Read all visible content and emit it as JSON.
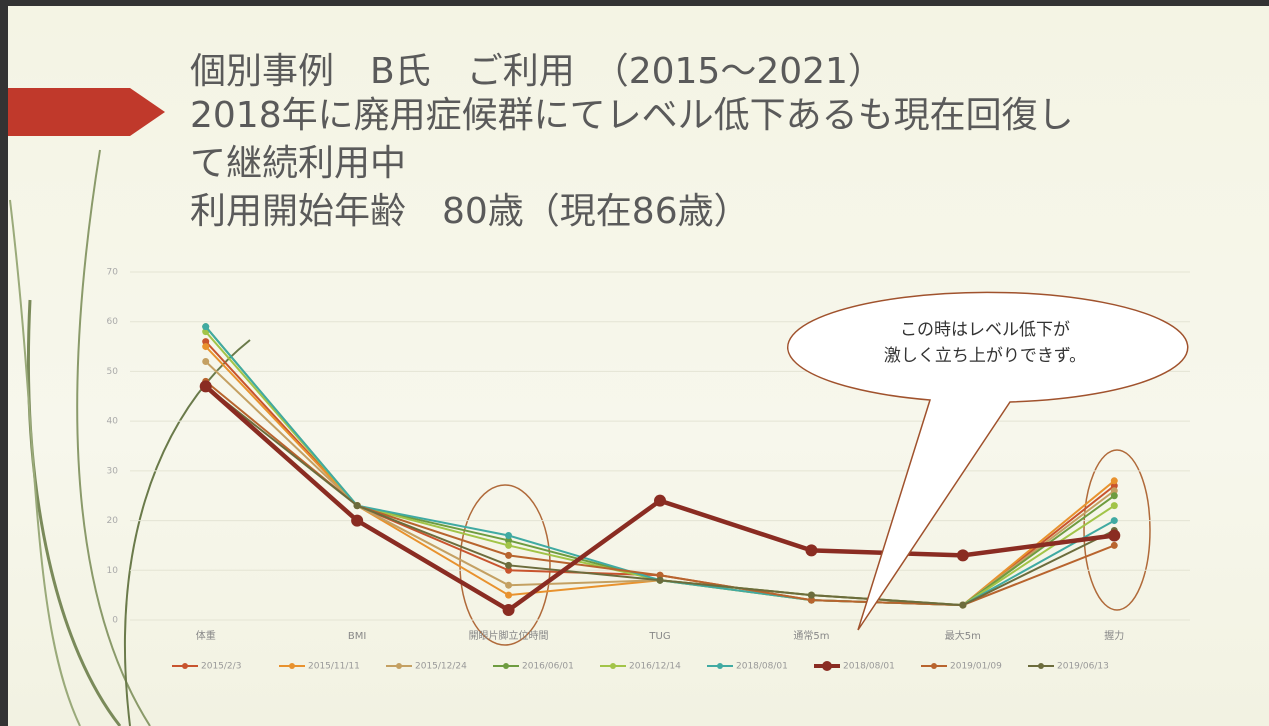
{
  "title_lines": [
    "個別事例　B氏　ご利用　（2015～2021）",
    "2018年に廃用症候群にてレベル低下あるも現在回復し",
    "て継続利用中",
    "利用開始年齢　80歳（現在86歳）"
  ],
  "chart_data": {
    "type": "line",
    "categories": [
      "体重",
      "BMI",
      "開眼片脚立位時間",
      "TUG",
      "通常5m",
      "最大5m",
      "握力"
    ],
    "series": [
      {
        "name": "2015/2/3",
        "color": "#c8542e",
        "values": [
          56,
          23,
          10,
          9,
          4,
          3,
          27
        ]
      },
      {
        "name": "2015/11/11",
        "color": "#e8922e",
        "values": [
          55,
          23,
          5,
          8,
          4,
          3,
          28
        ]
      },
      {
        "name": "2015/12/24",
        "color": "#c4a062",
        "values": [
          52,
          23,
          7,
          8,
          5,
          3,
          26
        ]
      },
      {
        "name": "2016/06/01",
        "color": "#6e9c40",
        "values": [
          59,
          23,
          16,
          8,
          5,
          3,
          25
        ]
      },
      {
        "name": "2016/12/14",
        "color": "#a2c448",
        "values": [
          58,
          23,
          15,
          8,
          4,
          3,
          23
        ]
      },
      {
        "name": "2018/08/01",
        "color": "#40aaa2",
        "values": [
          59,
          23,
          17,
          8,
          4,
          3,
          20
        ]
      },
      {
        "name": "2018/08/01",
        "color": "#8a2c22",
        "values": [
          47,
          20,
          2,
          24,
          14,
          13,
          17
        ],
        "bold": true
      },
      {
        "name": "2019/01/09",
        "color": "#b8642e",
        "values": [
          48,
          23,
          13,
          9,
          4,
          3,
          15
        ]
      },
      {
        "name": "2019/06/13",
        "color": "#6c6c3c",
        "values": [
          47,
          23,
          11,
          8,
          5,
          3,
          18
        ]
      }
    ],
    "ylim": [
      0,
      70
    ],
    "yticks": [
      0,
      10,
      20,
      30,
      40,
      50,
      60,
      70
    ],
    "grid": true,
    "annotation": [
      "この時はレベル低下が",
      "激しく立ち上がりできず。"
    ]
  }
}
